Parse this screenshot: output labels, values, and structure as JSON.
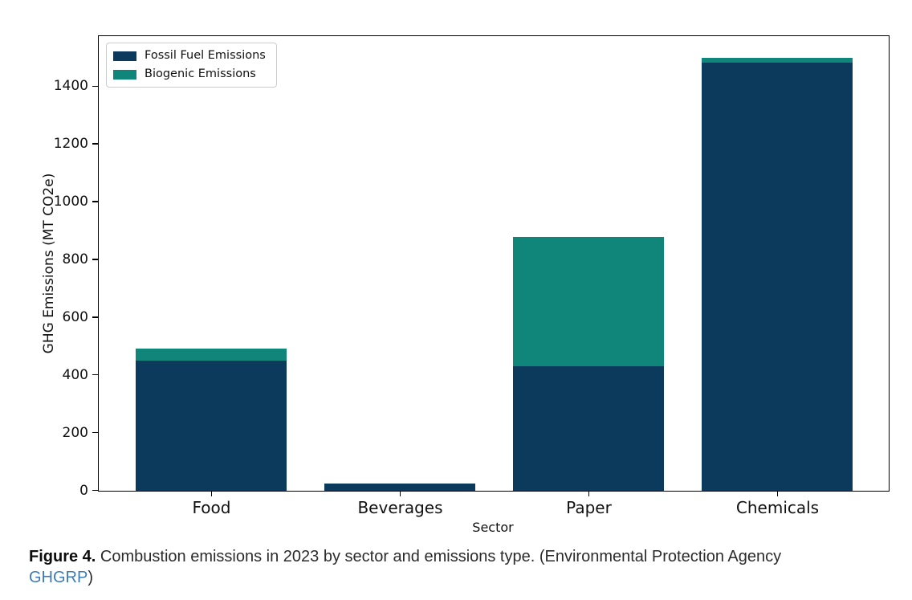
{
  "chart_data": {
    "type": "bar",
    "stacked": true,
    "categories": [
      "Food",
      "Beverages",
      "Paper",
      "Chemicals"
    ],
    "series": [
      {
        "name": "Fossil Fuel Emissions",
        "color": "#0c3a5d",
        "values": [
          452,
          24,
          432,
          1483
        ]
      },
      {
        "name": "Biogenic Emissions",
        "color": "#10857a",
        "values": [
          40,
          0,
          448,
          17
        ]
      }
    ],
    "xlabel": "Sector",
    "ylabel": "GHG Emissions (MT CO2e)",
    "ylim": [
      0,
      1572
    ],
    "yticks": [
      0,
      200,
      400,
      600,
      800,
      1000,
      1200,
      1400
    ],
    "legend_position": "upper left",
    "grid": false
  },
  "caption": {
    "label": "Figure 4.",
    "body": " Combustion emissions in 2023 by sector and emissions type. (Environmental Protection Agency",
    "link_text": "GHGRP",
    "suffix": ")",
    "link_color": "#3d7cb8"
  }
}
